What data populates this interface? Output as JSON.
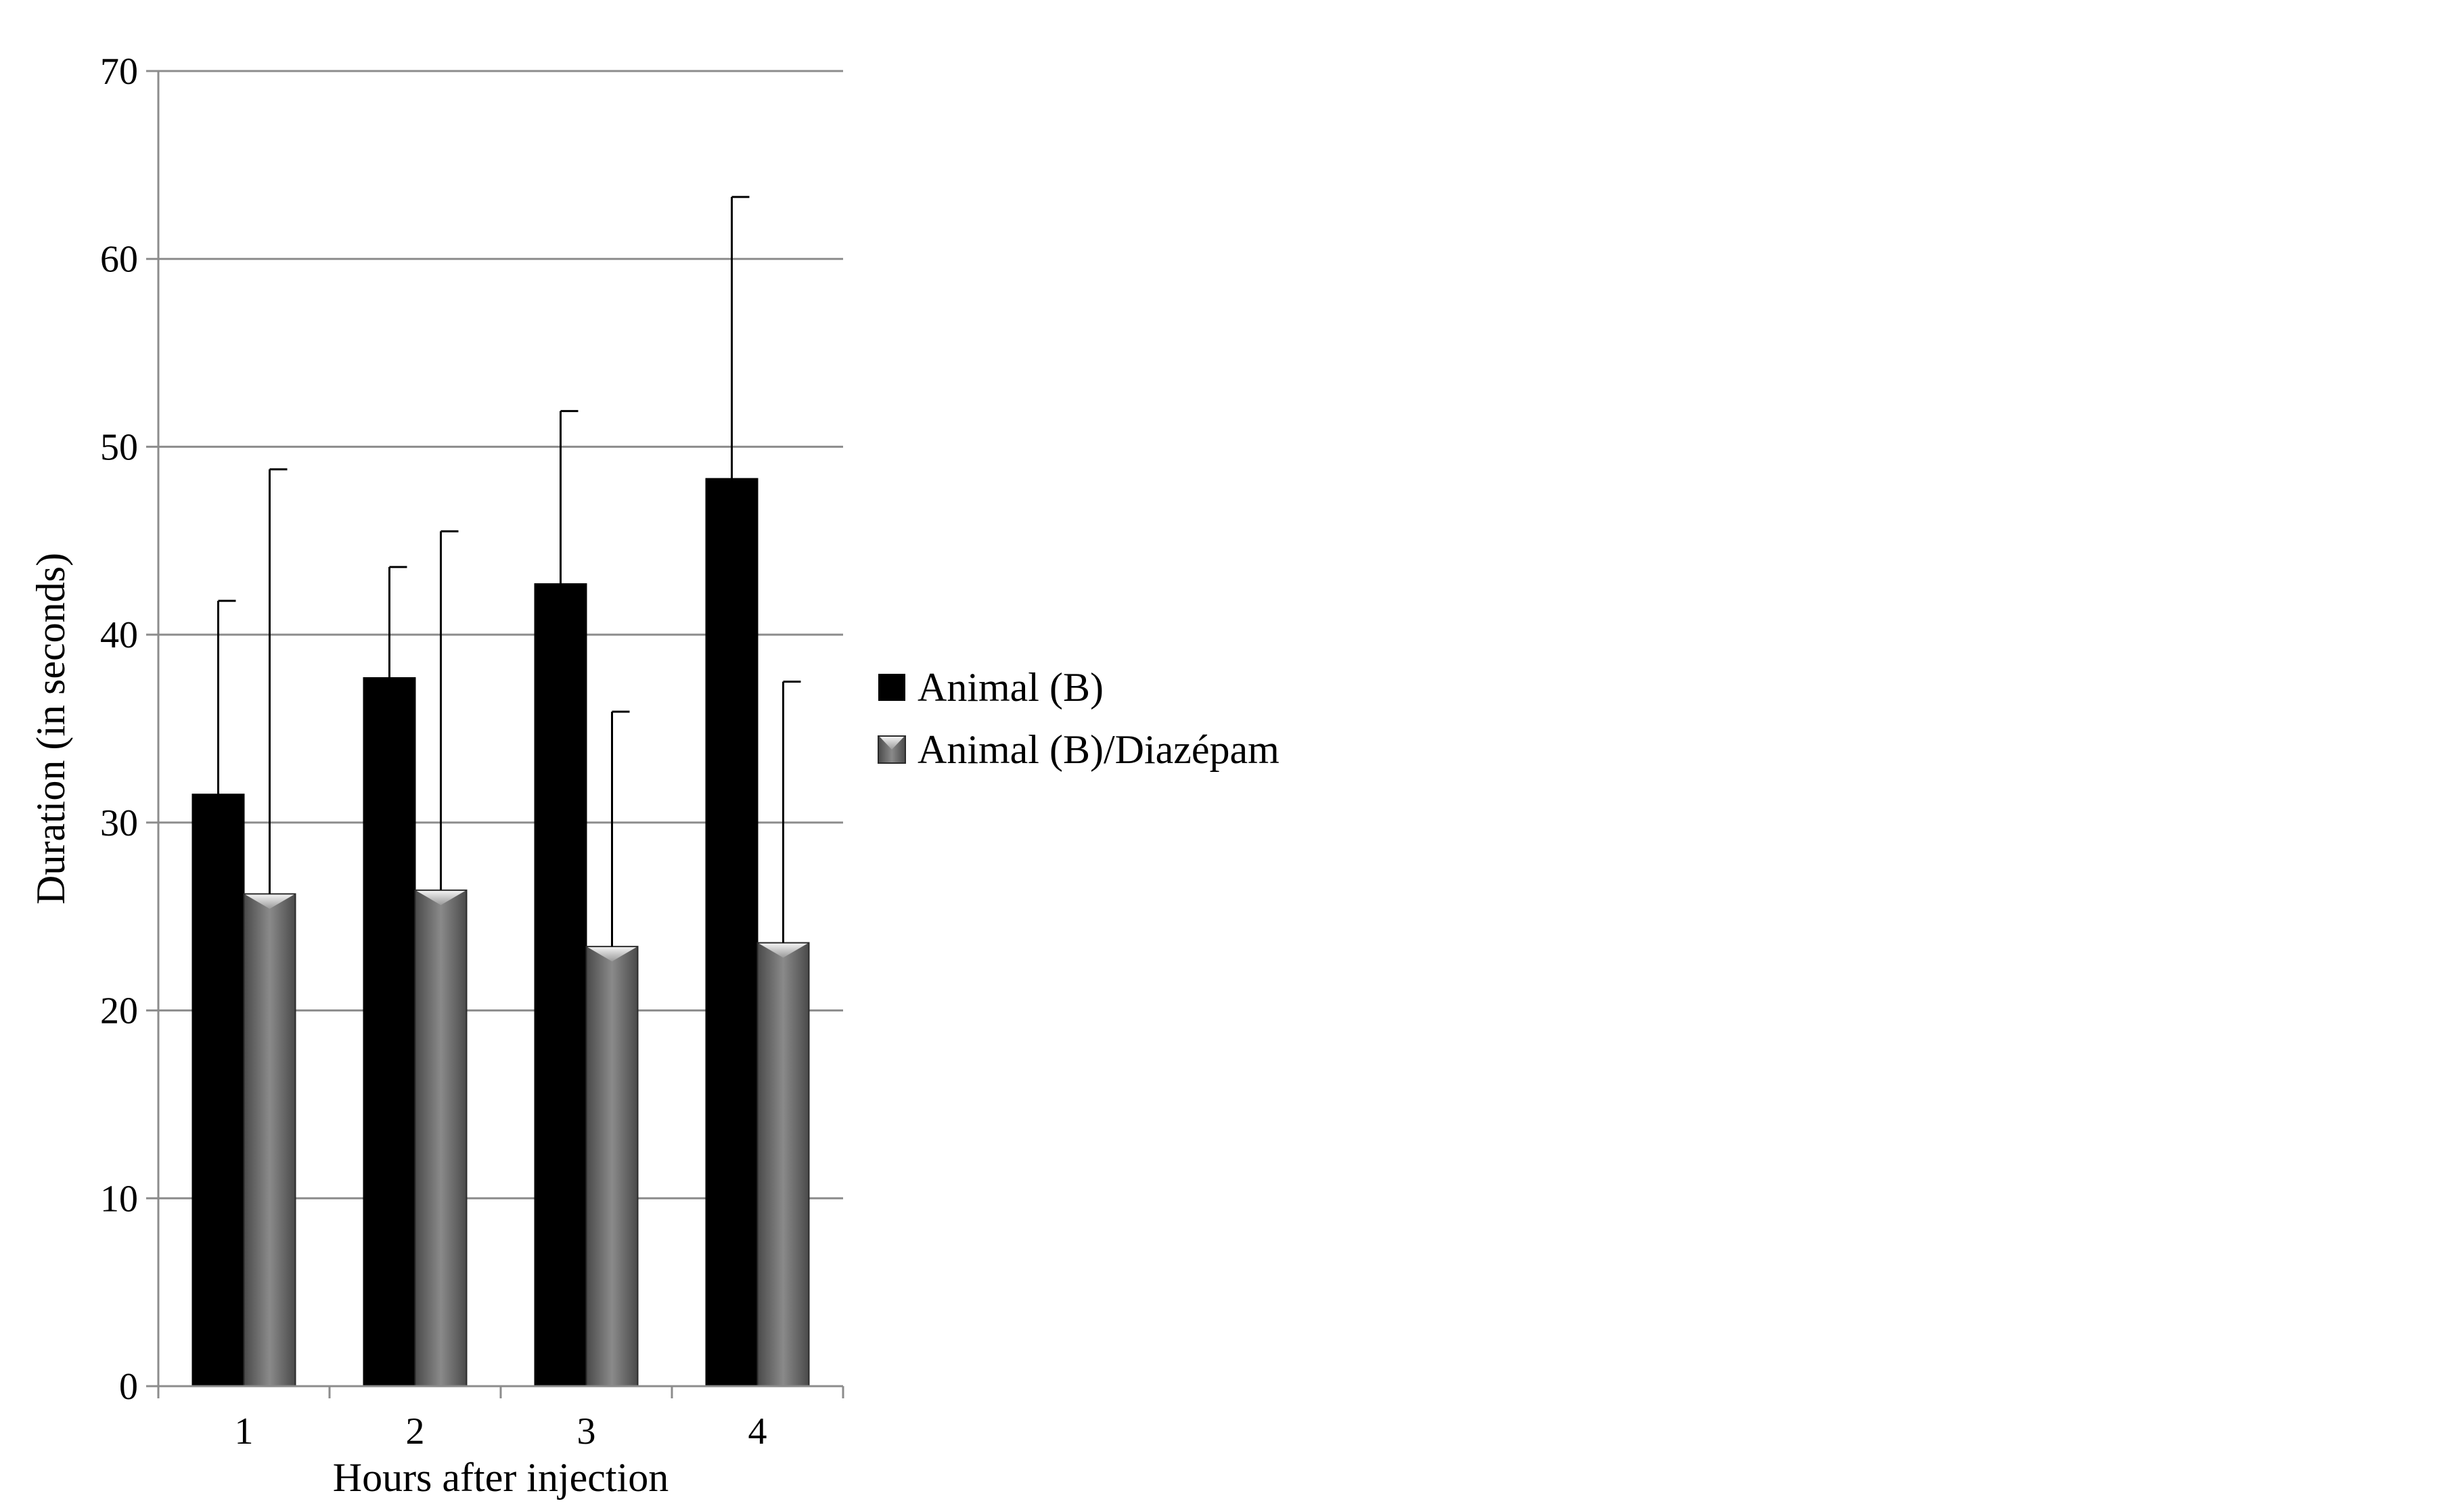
{
  "chart_data": {
    "type": "bar",
    "title": "",
    "xlabel": "Hours after injection",
    "ylabel": "Duration (in seconds)",
    "categories": [
      "1",
      "2",
      "3",
      "4"
    ],
    "ylim": [
      0,
      70
    ],
    "yticks": [
      "0",
      "10",
      "20",
      "30",
      "40",
      "50",
      "60",
      "70"
    ],
    "grid": true,
    "legend_position": "right",
    "series": [
      {
        "name": "Animal (B)",
        "values": [
          31.5,
          37.7,
          42.7,
          48.3
        ],
        "error": [
          10.3,
          5.9,
          9.2,
          15.0
        ],
        "color": "#000000"
      },
      {
        "name": "Animal (B)/Diazépam",
        "values": [
          26.2,
          26.4,
          23.4,
          23.6
        ],
        "error": [
          22.6,
          19.1,
          12.5,
          13.9
        ],
        "color": "#6e6e6e"
      }
    ]
  }
}
